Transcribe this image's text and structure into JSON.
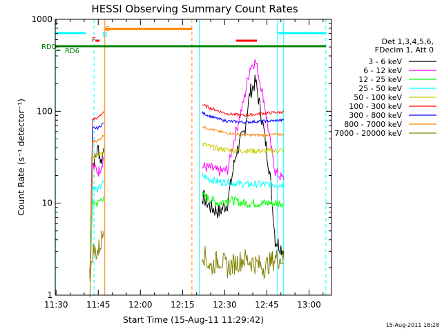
{
  "chart_data": {
    "type": "line",
    "title": "HESSI Observing Summary Count Rates",
    "xlabel": "Start Time (15-Aug-11 11:29:42)",
    "ylabel": "Count Rate (s⁻¹ detector⁻¹)",
    "yscale": "log",
    "ylim": [
      1,
      1000
    ],
    "xlim": [
      "11:29:42",
      "13:08:00"
    ],
    "x_ticks": [
      "11:30",
      "11:45",
      "12:00",
      "12:15",
      "12:30",
      "12:45",
      "13:00"
    ],
    "y_ticks": [
      "1",
      "10",
      "100",
      "1000"
    ],
    "legend_header": [
      "Det 1,3,4,5,6,",
      "FDecim 1, Att 0"
    ],
    "legend_position": "right",
    "series": [
      {
        "name": "3 - 6 keV",
        "color": "#000000",
        "data": [
          [
            "11:42",
            1.5
          ],
          [
            "11:43",
            26
          ],
          [
            "11:44",
            31
          ],
          [
            "11:45",
            40
          ],
          [
            "11:46",
            28
          ],
          [
            "11:47",
            40
          ],
          [
            "12:22",
            12
          ],
          [
            "12:25",
            9
          ],
          [
            "12:28",
            8
          ],
          [
            "12:31",
            10
          ],
          [
            "12:34",
            35
          ],
          [
            "12:37",
            60
          ],
          [
            "12:39",
            160
          ],
          [
            "12:41",
            210
          ],
          [
            "12:44",
            60
          ],
          [
            "12:46",
            22
          ],
          [
            "12:48",
            4
          ],
          [
            "12:51",
            3
          ]
        ]
      },
      {
        "name": "6 - 12 keV",
        "color": "#ff00ff",
        "data": [
          [
            "11:42",
            1.5
          ],
          [
            "11:43",
            25
          ],
          [
            "11:44",
            24
          ],
          [
            "11:45",
            22
          ],
          [
            "11:46",
            25
          ],
          [
            "11:47",
            32
          ],
          [
            "12:22",
            25
          ],
          [
            "12:25",
            24
          ],
          [
            "12:28",
            22
          ],
          [
            "12:31",
            23
          ],
          [
            "12:34",
            60
          ],
          [
            "12:37",
            140
          ],
          [
            "12:39",
            300
          ],
          [
            "12:41",
            350
          ],
          [
            "12:44",
            130
          ],
          [
            "12:46",
            50
          ],
          [
            "12:48",
            22
          ],
          [
            "12:51",
            18
          ]
        ]
      },
      {
        "name": "12 - 25 keV",
        "color": "#00ff00",
        "data": [
          [
            "11:42",
            1.5
          ],
          [
            "11:43",
            10
          ],
          [
            "11:45",
            10
          ],
          [
            "11:47",
            12
          ],
          [
            "12:22",
            12
          ],
          [
            "12:25",
            11
          ],
          [
            "12:28",
            10
          ],
          [
            "12:31",
            11
          ],
          [
            "12:37",
            10
          ],
          [
            "12:44",
            10
          ],
          [
            "12:48",
            10
          ],
          [
            "12:51",
            10
          ]
        ]
      },
      {
        "name": "25 - 50 keV",
        "color": "#00ffff",
        "data": [
          [
            "11:42",
            1.5
          ],
          [
            "11:43",
            15
          ],
          [
            "11:45",
            14
          ],
          [
            "11:47",
            17
          ],
          [
            "12:22",
            20
          ],
          [
            "12:25",
            18
          ],
          [
            "12:28",
            17
          ],
          [
            "12:31",
            17
          ],
          [
            "12:37",
            16
          ],
          [
            "12:44",
            16
          ],
          [
            "12:48",
            16
          ],
          [
            "12:51",
            16
          ]
        ]
      },
      {
        "name": "50 - 100 keV",
        "color": "#cccc00",
        "data": [
          [
            "11:42",
            1.5
          ],
          [
            "11:43",
            32
          ],
          [
            "11:45",
            33
          ],
          [
            "11:47",
            37
          ],
          [
            "12:22",
            44
          ],
          [
            "12:25",
            41
          ],
          [
            "12:28",
            39
          ],
          [
            "12:31",
            38
          ],
          [
            "12:37",
            37
          ],
          [
            "12:44",
            37
          ],
          [
            "12:48",
            37
          ],
          [
            "12:51",
            38
          ]
        ]
      },
      {
        "name": "100 - 300 keV",
        "color": "#ff0000",
        "data": [
          [
            "11:42",
            1.5
          ],
          [
            "11:43",
            82
          ],
          [
            "11:45",
            85
          ],
          [
            "11:47",
            100
          ],
          [
            "12:22",
            118
          ],
          [
            "12:25",
            108
          ],
          [
            "12:28",
            100
          ],
          [
            "12:31",
            94
          ],
          [
            "12:37",
            90
          ],
          [
            "12:44",
            95
          ],
          [
            "12:48",
            97
          ],
          [
            "12:51",
            98
          ]
        ]
      },
      {
        "name": "300 - 800 keV",
        "color": "#0000ff",
        "data": [
          [
            "11:42",
            1.5
          ],
          [
            "11:43",
            65
          ],
          [
            "11:45",
            66
          ],
          [
            "11:47",
            75
          ],
          [
            "12:22",
            96
          ],
          [
            "12:25",
            88
          ],
          [
            "12:28",
            82
          ],
          [
            "12:31",
            78
          ],
          [
            "12:37",
            76
          ],
          [
            "12:44",
            78
          ],
          [
            "12:48",
            79
          ],
          [
            "12:51",
            80
          ]
        ]
      },
      {
        "name": "800 - 7000 keV",
        "color": "#ff8000",
        "data": [
          [
            "11:42",
            1.5
          ],
          [
            "11:43",
            47
          ],
          [
            "11:45",
            48
          ],
          [
            "11:47",
            55
          ],
          [
            "12:22",
            68
          ],
          [
            "12:25",
            64
          ],
          [
            "12:28",
            60
          ],
          [
            "12:31",
            58
          ],
          [
            "12:37",
            55
          ],
          [
            "12:44",
            55
          ],
          [
            "12:48",
            56
          ],
          [
            "12:51",
            56
          ]
        ]
      },
      {
        "name": "7000 - 20000 keV",
        "color": "#808000",
        "data": [
          [
            "11:42",
            1.2
          ],
          [
            "11:43",
            3
          ],
          [
            "11:45",
            3
          ],
          [
            "11:47",
            5
          ],
          [
            "12:22",
            3
          ],
          [
            "12:25",
            2
          ],
          [
            "12:28",
            2.5
          ],
          [
            "12:31",
            2
          ],
          [
            "12:37",
            2.5
          ],
          [
            "12:44",
            2
          ],
          [
            "12:48",
            2.5
          ],
          [
            "12:51",
            2.5
          ]
        ]
      }
    ],
    "flag_labels": [
      "RD0",
      "RD6",
      "S",
      "N",
      "F"
    ],
    "flag_colors": {
      "RD0": "#008000",
      "RD6": "#008000",
      "S": "#ff8000",
      "N": "#00ffff",
      "F": "#ff0000"
    },
    "timestamp": "15-Aug-2011 18:28"
  }
}
